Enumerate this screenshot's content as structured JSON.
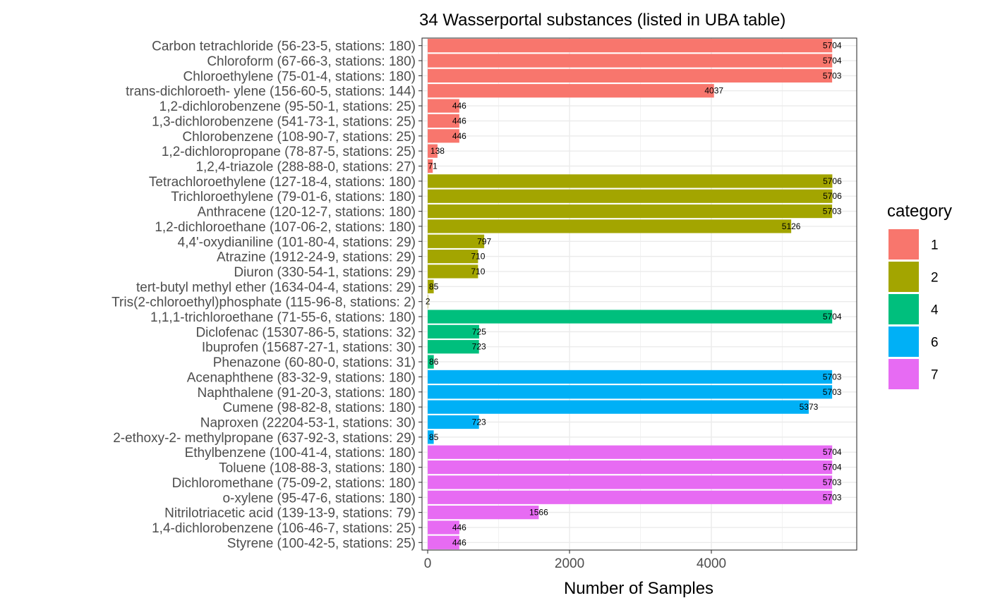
{
  "chart_data": {
    "type": "bar",
    "orientation": "horizontal",
    "title": "34 Wasserportal substances (listed in UBA table)",
    "xlabel": "Number of Samples",
    "ylabel": "",
    "xlim": [
      -80,
      6050
    ],
    "xticks": [
      0,
      2000,
      4000
    ],
    "xtick_labels": [
      "0",
      "2000",
      "4000"
    ],
    "grid": true,
    "legend": {
      "title": "category",
      "placement": "right",
      "entries": [
        {
          "label": "1",
          "color": "#F8766D"
        },
        {
          "label": "2",
          "color": "#A3A500"
        },
        {
          "label": "4",
          "color": "#00BF7D"
        },
        {
          "label": "6",
          "color": "#00B0F6"
        },
        {
          "label": "7",
          "color": "#E76BF3"
        }
      ]
    },
    "bars": [
      {
        "label": "Carbon tetrachloride (56-23-5, stations: 180)",
        "value": 5704,
        "category": "1"
      },
      {
        "label": "Chloroform (67-66-3, stations: 180)",
        "value": 5704,
        "category": "1"
      },
      {
        "label": "Chloroethylene (75-01-4, stations: 180)",
        "value": 5703,
        "category": "1"
      },
      {
        "label": "trans-dichloroeth- ylene (156-60-5, stations: 144)",
        "value": 4037,
        "category": "1"
      },
      {
        "label": "1,2-dichlorobenzene (95-50-1, stations: 25)",
        "value": 446,
        "category": "1"
      },
      {
        "label": "1,3-dichlorobenzene (541-73-1, stations: 25)",
        "value": 446,
        "category": "1"
      },
      {
        "label": "Chlorobenzene (108-90-7, stations: 25)",
        "value": 446,
        "category": "1"
      },
      {
        "label": "1,2-dichloropropane (78-87-5, stations: 25)",
        "value": 138,
        "category": "1"
      },
      {
        "label": "1,2,4-triazole (288-88-0, stations: 27)",
        "value": 71,
        "category": "1"
      },
      {
        "label": "Tetrachloroethylene (127-18-4, stations: 180)",
        "value": 5706,
        "category": "2"
      },
      {
        "label": "Trichloroethylene (79-01-6, stations: 180)",
        "value": 5706,
        "category": "2"
      },
      {
        "label": "Anthracene (120-12-7, stations: 180)",
        "value": 5703,
        "category": "2"
      },
      {
        "label": "1,2-dichloroethane (107-06-2, stations: 180)",
        "value": 5126,
        "category": "2"
      },
      {
        "label": "4,4'-oxydianiline (101-80-4, stations: 29)",
        "value": 797,
        "category": "2"
      },
      {
        "label": "Atrazine (1912-24-9, stations: 29)",
        "value": 710,
        "category": "2"
      },
      {
        "label": "Diuron (330-54-1, stations: 29)",
        "value": 710,
        "category": "2"
      },
      {
        "label": "tert-butyl methyl ether (1634-04-4, stations: 29)",
        "value": 85,
        "category": "2"
      },
      {
        "label": "Tris(2-chloroethyl)phosphate (115-96-8, stations: 2)",
        "value": 2,
        "category": "2"
      },
      {
        "label": "1,1,1-trichloroethane (71-55-6, stations: 180)",
        "value": 5704,
        "category": "4"
      },
      {
        "label": "Diclofenac (15307-86-5, stations: 32)",
        "value": 725,
        "category": "4"
      },
      {
        "label": "Ibuprofen (15687-27-1, stations: 30)",
        "value": 723,
        "category": "4"
      },
      {
        "label": "Phenazone (60-80-0, stations: 31)",
        "value": 86,
        "category": "4"
      },
      {
        "label": "Acenaphthene (83-32-9, stations: 180)",
        "value": 5703,
        "category": "6"
      },
      {
        "label": "Naphthalene (91-20-3, stations: 180)",
        "value": 5703,
        "category": "6"
      },
      {
        "label": "Cumene (98-82-8, stations: 180)",
        "value": 5373,
        "category": "6"
      },
      {
        "label": "Naproxen (22204-53-1, stations: 30)",
        "value": 723,
        "category": "6"
      },
      {
        "label": "2-ethoxy-2- methylpropane (637-92-3, stations: 29)",
        "value": 85,
        "category": "6"
      },
      {
        "label": "Ethylbenzene (100-41-4, stations: 180)",
        "value": 5704,
        "category": "7"
      },
      {
        "label": "Toluene (108-88-3, stations: 180)",
        "value": 5704,
        "category": "7"
      },
      {
        "label": "Dichloromethane (75-09-2, stations: 180)",
        "value": 5703,
        "category": "7"
      },
      {
        "label": "o-xylene (95-47-6, stations: 180)",
        "value": 5703,
        "category": "7"
      },
      {
        "label": "Nitrilotriacetic acid (139-13-9, stations: 79)",
        "value": 1566,
        "category": "7"
      },
      {
        "label": "1,4-dichlorobenzene (106-46-7, stations: 25)",
        "value": 446,
        "category": "7"
      },
      {
        "label": "Styrene (100-42-5, stations: 25)",
        "value": 446,
        "category": "7"
      }
    ]
  }
}
